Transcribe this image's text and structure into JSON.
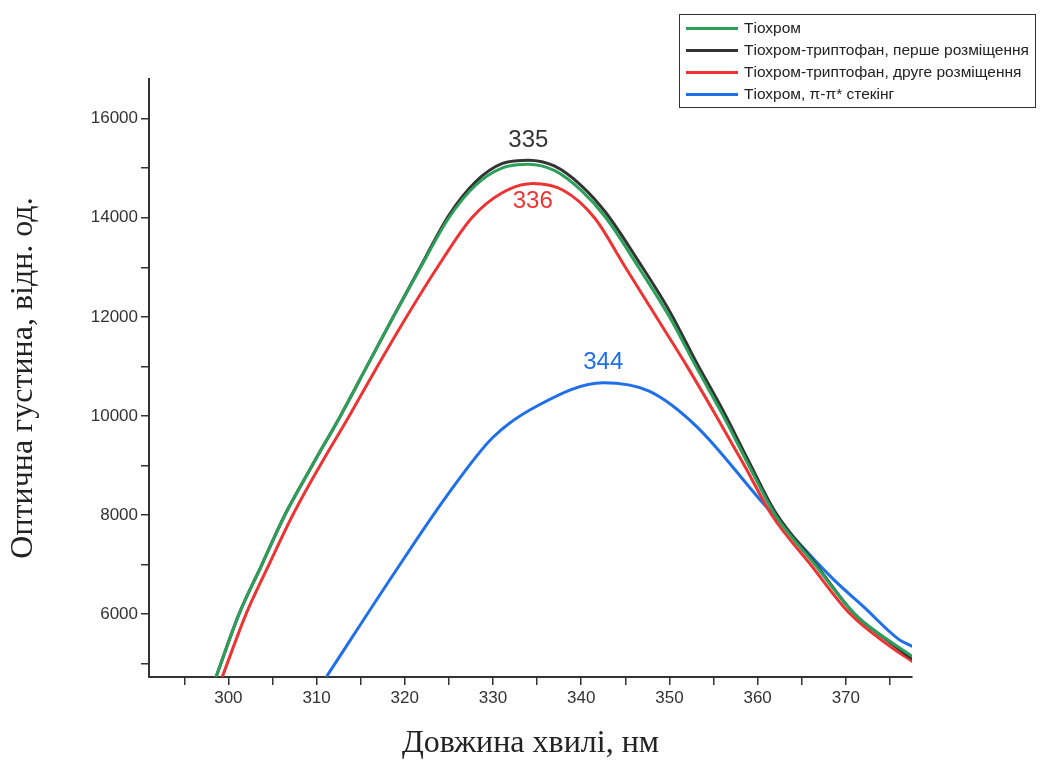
{
  "chart_data": {
    "type": "line",
    "xlabel": "Довжина хвилі, нм",
    "ylabel": "Оптична густина, відн. од.",
    "xlim": [
      291,
      377.5
    ],
    "ylim": [
      4730,
      16800
    ],
    "xticks": [
      {
        "value": 295,
        "label": null
      },
      300,
      {
        "value": 305,
        "label": null
      },
      310,
      {
        "value": 315,
        "label": null
      },
      320,
      {
        "value": 325,
        "label": null
      },
      330,
      {
        "value": 335,
        "label": null
      },
      340,
      {
        "value": 345,
        "label": null
      },
      350,
      {
        "value": 355,
        "label": null
      },
      360,
      {
        "value": 365,
        "label": null
      },
      370,
      {
        "value": 375,
        "label": null
      }
    ],
    "yticks": [
      {
        "value": 5000,
        "label": null
      },
      6000,
      {
        "value": 7000,
        "label": null
      },
      8000,
      {
        "value": 9000,
        "label": null
      },
      10000,
      {
        "value": 11000,
        "label": null
      },
      12000,
      {
        "value": 13000,
        "label": null
      },
      14000,
      {
        "value": 15000,
        "label": null
      },
      16000
    ],
    "grid": false,
    "legend": "top right",
    "marker": "none",
    "line_style": "solid",
    "series": [
      {
        "name": "Тіохром",
        "color": "#2ca05a",
        "x": [
          298.6,
          301.2,
          303.8,
          306.4,
          309.5,
          312.7,
          315.7,
          318.7,
          321.8,
          325,
          328,
          331,
          334,
          337,
          340,
          342.8,
          346.5,
          350,
          353,
          356.1,
          359,
          362,
          366.5,
          371,
          375,
          377.5
        ],
        "values": [
          4730,
          6000,
          7000,
          8000,
          9000,
          10000,
          11000,
          12000,
          13000,
          14000,
          14650,
          15000,
          15080,
          14950,
          14550,
          14000,
          13000,
          12000,
          11000,
          10000,
          9000,
          8000,
          7000,
          6000,
          5450,
          5150
        ]
      },
      {
        "name": "Тіохром-триптофан, перше розміщення",
        "color": "#333333",
        "x": [
          298.6,
          301.2,
          303.8,
          306.4,
          309.5,
          312.7,
          315.7,
          318.7,
          321.8,
          325,
          328,
          331,
          334,
          337,
          340,
          342.8,
          346.5,
          350,
          353,
          356.1,
          359,
          362,
          366.5,
          371,
          375,
          377.5
        ],
        "values": [
          4730,
          6000,
          7000,
          8000,
          9000,
          10000,
          11000,
          12000,
          13020,
          14050,
          14720,
          15090,
          15160,
          15040,
          14650,
          14100,
          13120,
          12120,
          11100,
          10100,
          9080,
          8060,
          7030,
          6000,
          5430,
          5100
        ]
      },
      {
        "name": "Тіохром-триптофан, друге розміщення",
        "color": "#ee3333",
        "x": [
          299.3,
          302,
          304.6,
          307.3,
          310.4,
          313.7,
          316.9,
          320.2,
          323.7,
          327.6,
          331,
          334.5,
          338,
          341.5,
          345,
          348.5,
          352,
          355.3,
          358.5,
          361.6,
          366,
          370.5,
          375,
          377.5
        ],
        "values": [
          4730,
          6000,
          7000,
          8000,
          9000,
          10000,
          11000,
          12000,
          13000,
          14000,
          14500,
          14690,
          14550,
          14000,
          13000,
          12000,
          11000,
          10000,
          9000,
          8000,
          7000,
          6000,
          5350,
          5050
        ]
      },
      {
        "name": "Тіохром, π-π* стекінг",
        "color": "#1f6fe8",
        "x": [
          311.1,
          319,
          324.7,
          330,
          335.2,
          342.5,
          347.7,
          353,
          360.8,
          368.6,
          372,
          376,
          377.5
        ],
        "values": [
          4730,
          6880,
          8370,
          9570,
          10220,
          10670,
          10500,
          9800,
          8200,
          6700,
          6150,
          5490,
          5350
        ]
      }
    ],
    "annotations": [
      {
        "text": "335",
        "x": 334,
        "y": 15160
      },
      {
        "text": "336",
        "x": 334.5,
        "y": 14690
      },
      {
        "text": "344",
        "x": 342.5,
        "y": 10670
      }
    ]
  }
}
